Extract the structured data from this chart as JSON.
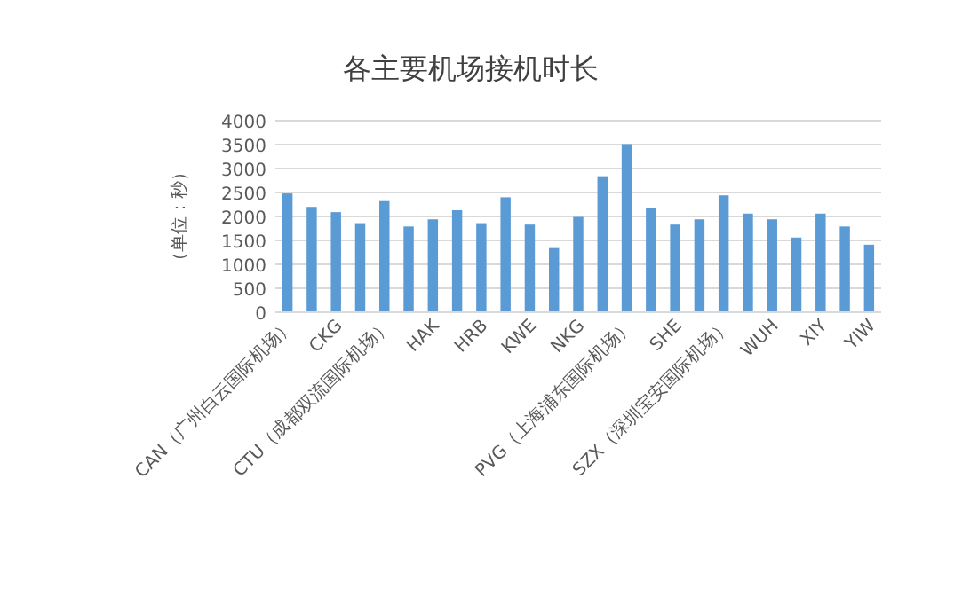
{
  "chart_data": {
    "type": "bar",
    "title": "各主要机场接机时长",
    "ylabel": "（单位：秒）",
    "categories": [
      "CAN（广州白云国际机场）",
      null,
      "CKG",
      null,
      "CTU（成都双流国际机场）",
      null,
      "HAK",
      null,
      "HRB",
      null,
      "KWE",
      null,
      "NKG",
      null,
      "PVG（上海浦东国际机场）",
      null,
      "SHE",
      null,
      "SZX（深圳宝安国际机场）",
      null,
      "WUH",
      null,
      "XIY",
      null,
      "YIW"
    ],
    "values": [
      2480,
      2200,
      2090,
      1860,
      2320,
      1790,
      1940,
      2130,
      1860,
      2400,
      1830,
      1340,
      1990,
      2840,
      3510,
      2170,
      1830,
      1940,
      2440,
      2060,
      1940,
      1560,
      2060,
      1790,
      1410
    ],
    "color": "#5b9bd5",
    "ylim": [
      0,
      4000
    ],
    "yticks": [
      0,
      500,
      1000,
      1500,
      2000,
      2500,
      3000,
      3500,
      4000
    ],
    "grid": "y"
  }
}
